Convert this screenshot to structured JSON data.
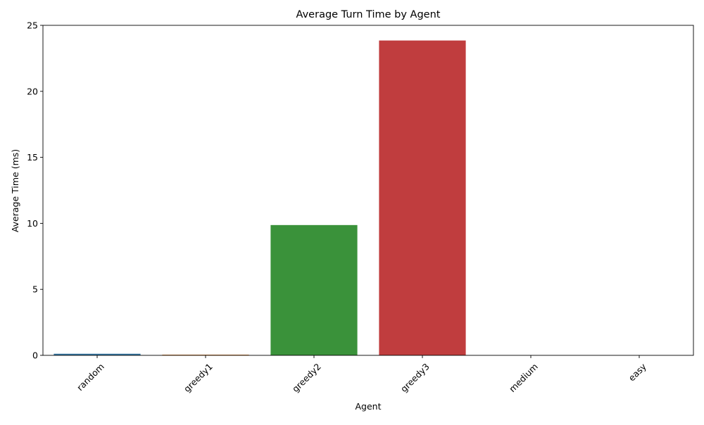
{
  "chart_data": {
    "type": "bar",
    "title": "Average Turn Time by Agent",
    "xlabel": "Agent",
    "ylabel": "Average Time (ms)",
    "categories": [
      "random",
      "greedy1",
      "greedy2",
      "greedy3",
      "medium",
      "easy"
    ],
    "values": [
      0.12,
      0.05,
      9.87,
      23.85,
      0.0,
      0.0
    ],
    "colors": [
      "#3274a1",
      "#e1812c",
      "#3a923a",
      "#c03d3e",
      "#9372b2",
      "#845b53"
    ],
    "ylim": [
      0,
      25
    ],
    "yticks": [
      0,
      5,
      10,
      15,
      20,
      25
    ],
    "xtick_rotation": 45,
    "grid": false,
    "legend": "none"
  }
}
